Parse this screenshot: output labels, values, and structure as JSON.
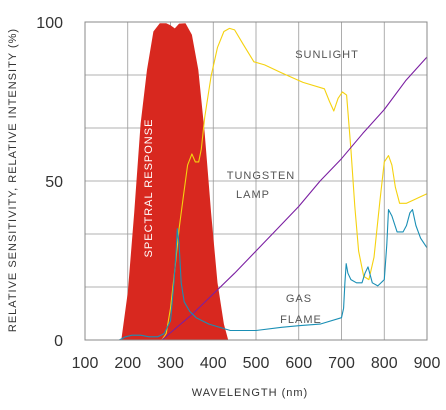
{
  "chart_data": {
    "type": "area",
    "xlabel": "WAVELENGTH (nm)",
    "ylabel": "RELATIVE SENSITIVITY, RELATIVE INTENSITY (%)",
    "xlim": [
      100,
      900
    ],
    "ylim": [
      0,
      100
    ],
    "x_ticks": [
      "100",
      "200",
      "300",
      "400",
      "500",
      "600",
      "700",
      "800",
      "900"
    ],
    "y_ticks": [
      "0",
      "50",
      "100"
    ],
    "grid": true,
    "series": [
      {
        "name": "SPECTRAL RESPONSE",
        "style": "filled",
        "color": "#d8281f",
        "points": [
          [
            185,
            0
          ],
          [
            200,
            15
          ],
          [
            215,
            40
          ],
          [
            230,
            68
          ],
          [
            245,
            85
          ],
          [
            260,
            97
          ],
          [
            275,
            99.6
          ],
          [
            290,
            99.6
          ],
          [
            300,
            99
          ],
          [
            310,
            98
          ],
          [
            320,
            99.5
          ],
          [
            335,
            99.6
          ],
          [
            350,
            96
          ],
          [
            365,
            85
          ],
          [
            380,
            65
          ],
          [
            395,
            40
          ],
          [
            410,
            18
          ],
          [
            425,
            5
          ],
          [
            435,
            0
          ]
        ]
      },
      {
        "name": "SUNLIGHT",
        "style": "line",
        "color": "#f5d20f",
        "points": [
          [
            280,
            0
          ],
          [
            290,
            2
          ],
          [
            300,
            10
          ],
          [
            310,
            22
          ],
          [
            320,
            35
          ],
          [
            330,
            45
          ],
          [
            340,
            55
          ],
          [
            350,
            58.5
          ],
          [
            358,
            56
          ],
          [
            366,
            56
          ],
          [
            372,
            60
          ],
          [
            380,
            70
          ],
          [
            395,
            83
          ],
          [
            410,
            92
          ],
          [
            425,
            97
          ],
          [
            438,
            98
          ],
          [
            450,
            97.5
          ],
          [
            470,
            93
          ],
          [
            495,
            87.5
          ],
          [
            520,
            86.5
          ],
          [
            560,
            84
          ],
          [
            610,
            81
          ],
          [
            660,
            79
          ],
          [
            672,
            75
          ],
          [
            682,
            72
          ],
          [
            692,
            76
          ],
          [
            702,
            78
          ],
          [
            712,
            77
          ],
          [
            722,
            60
          ],
          [
            731,
            42
          ],
          [
            740,
            28
          ],
          [
            752,
            20
          ],
          [
            764,
            19
          ],
          [
            776,
            26
          ],
          [
            790,
            44
          ],
          [
            800,
            56
          ],
          [
            810,
            58
          ],
          [
            818,
            55
          ],
          [
            826,
            48
          ],
          [
            836,
            43
          ],
          [
            852,
            43
          ],
          [
            868,
            44
          ],
          [
            884,
            45
          ],
          [
            900,
            46
          ]
        ]
      },
      {
        "name": "TUNGSTEN LAMP",
        "style": "line",
        "color": "#7b1fa2",
        "points": [
          [
            280,
            0
          ],
          [
            350,
            8
          ],
          [
            400,
            14.5
          ],
          [
            450,
            21
          ],
          [
            500,
            28
          ],
          [
            550,
            35
          ],
          [
            600,
            42
          ],
          [
            650,
            50
          ],
          [
            700,
            57
          ],
          [
            750,
            65
          ],
          [
            800,
            72.5
          ],
          [
            850,
            81.5
          ],
          [
            900,
            89
          ]
        ]
      },
      {
        "name": "GAS FLAME",
        "style": "line",
        "color": "#1a8fb5",
        "points": [
          [
            180,
            0
          ],
          [
            195,
            1
          ],
          [
            210,
            1.5
          ],
          [
            230,
            1.5
          ],
          [
            250,
            1
          ],
          [
            270,
            1
          ],
          [
            285,
            2
          ],
          [
            300,
            6
          ],
          [
            308,
            18
          ],
          [
            313,
            28
          ],
          [
            316,
            35
          ],
          [
            320,
            30
          ],
          [
            325,
            18
          ],
          [
            332,
            12
          ],
          [
            345,
            9
          ],
          [
            360,
            7
          ],
          [
            390,
            5
          ],
          [
            440,
            3
          ],
          [
            500,
            3
          ],
          [
            560,
            4
          ],
          [
            600,
            4.5
          ],
          [
            650,
            5
          ],
          [
            700,
            7
          ],
          [
            705,
            10
          ],
          [
            708,
            18
          ],
          [
            711,
            24
          ],
          [
            715,
            21
          ],
          [
            722,
            19
          ],
          [
            735,
            18
          ],
          [
            748,
            18
          ],
          [
            755,
            21
          ],
          [
            762,
            23
          ],
          [
            772,
            18
          ],
          [
            785,
            17
          ],
          [
            800,
            19
          ],
          [
            806,
            30
          ],
          [
            810,
            41
          ],
          [
            818,
            39
          ],
          [
            830,
            34
          ],
          [
            844,
            34
          ],
          [
            852,
            36
          ],
          [
            860,
            40
          ],
          [
            866,
            41
          ],
          [
            874,
            36
          ],
          [
            885,
            32
          ],
          [
            900,
            29
          ]
        ]
      }
    ]
  }
}
